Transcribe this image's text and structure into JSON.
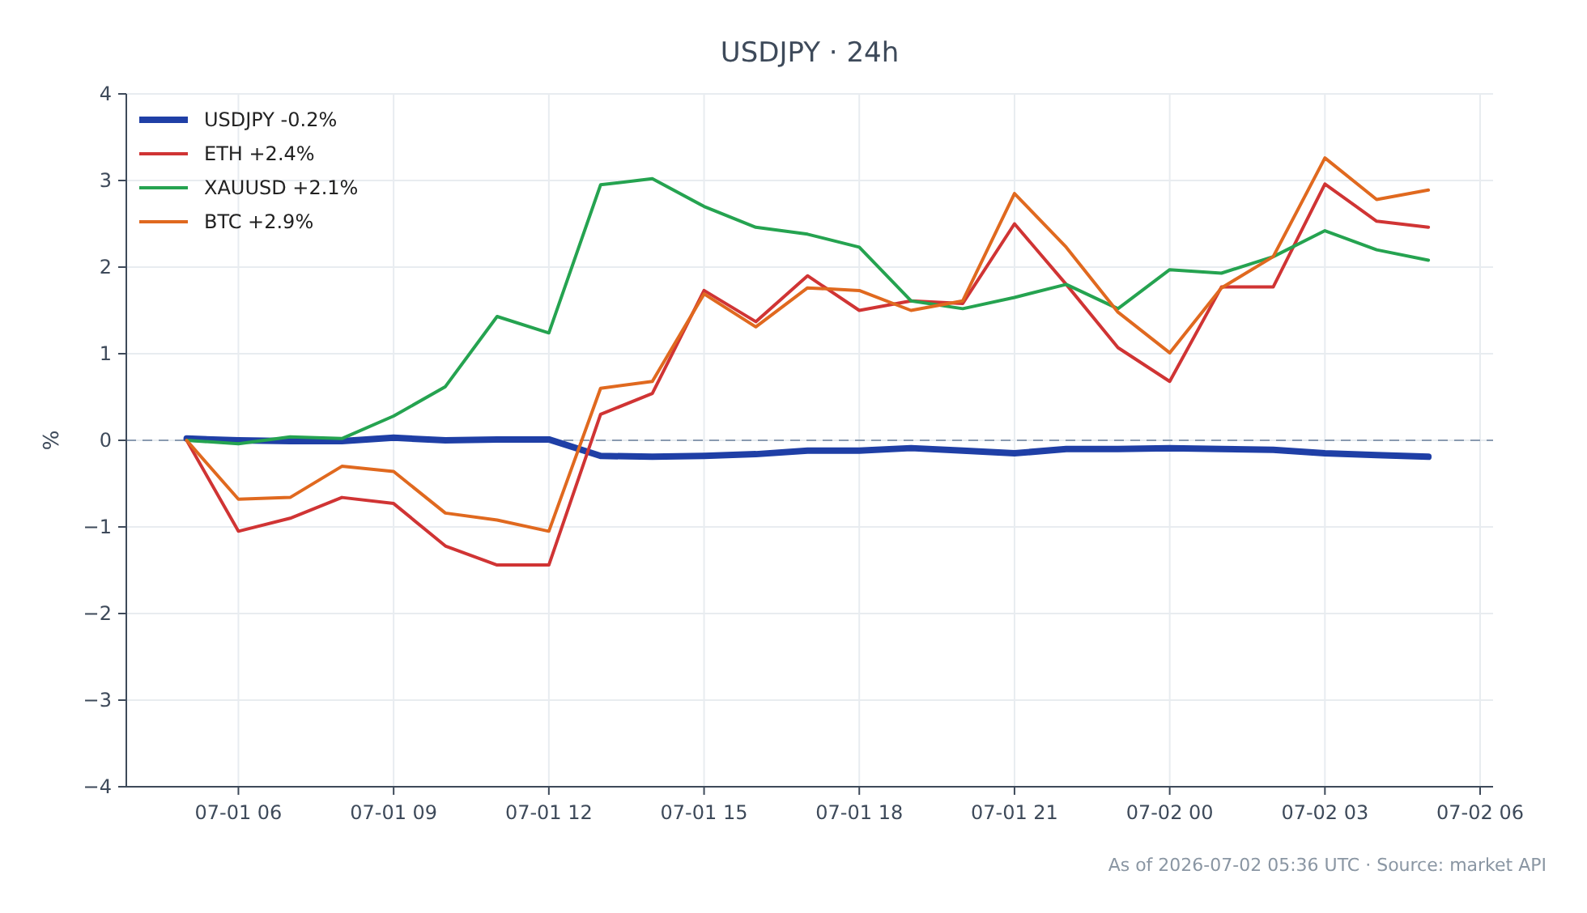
{
  "chart_data": {
    "type": "line",
    "title": "USDJPY · 24h",
    "ylabel": "%",
    "x": [
      "2026-07-01T05:00",
      "2026-07-01T06:00",
      "2026-07-01T07:00",
      "2026-07-01T08:00",
      "2026-07-01T09:00",
      "2026-07-01T10:00",
      "2026-07-01T11:00",
      "2026-07-01T12:00",
      "2026-07-01T13:00",
      "2026-07-01T14:00",
      "2026-07-01T15:00",
      "2026-07-01T16:00",
      "2026-07-01T17:00",
      "2026-07-01T18:00",
      "2026-07-01T19:00",
      "2026-07-01T20:00",
      "2026-07-01T21:00",
      "2026-07-01T22:00",
      "2026-07-01T23:00",
      "2026-07-02T00:00",
      "2026-07-02T01:00",
      "2026-07-02T02:00",
      "2026-07-02T03:00",
      "2026-07-02T04:00",
      "2026-07-02T05:00"
    ],
    "series": [
      {
        "name": "USDJPY -0.2%",
        "color": "#1f3fa6",
        "values": [
          0.02,
          0.0,
          -0.01,
          -0.01,
          0.03,
          0.0,
          0.01,
          0.01,
          -0.18,
          -0.19,
          -0.18,
          -0.16,
          -0.12,
          -0.12,
          -0.09,
          -0.12,
          -0.15,
          -0.1,
          -0.1,
          -0.09,
          -0.1,
          -0.11,
          -0.15,
          -0.17,
          -0.19
        ]
      },
      {
        "name": "ETH +2.4%",
        "color": "#d03434",
        "values": [
          0,
          -1.05,
          -0.9,
          -0.66,
          -0.73,
          -1.22,
          -1.44,
          -1.44,
          0.3,
          0.54,
          1.73,
          1.37,
          1.9,
          1.5,
          1.61,
          1.58,
          2.5,
          1.8,
          1.07,
          0.68,
          1.77,
          1.77,
          2.96,
          2.53,
          2.46
        ]
      },
      {
        "name": "XAUUSD +2.1%",
        "color": "#25a350",
        "values": [
          0,
          -0.04,
          0.04,
          0.02,
          0.28,
          0.62,
          1.43,
          1.24,
          2.95,
          3.02,
          2.7,
          2.46,
          2.38,
          2.23,
          1.61,
          1.52,
          1.65,
          1.8,
          1.52,
          1.97,
          1.93,
          2.12,
          2.42,
          2.2,
          2.08
        ]
      },
      {
        "name": "BTC +2.9%",
        "color": "#e0691f",
        "values": [
          0,
          -0.68,
          -0.66,
          -0.3,
          -0.36,
          -0.84,
          -0.92,
          -1.05,
          0.6,
          0.68,
          1.69,
          1.31,
          1.76,
          1.73,
          1.5,
          1.61,
          2.85,
          2.23,
          1.48,
          1.01,
          1.76,
          2.12,
          3.26,
          2.78,
          2.89
        ]
      }
    ],
    "xlim": [
      "2026-07-01T03:50",
      "2026-07-02T06:15"
    ],
    "xticks": [
      {
        "value": "2026-07-01T06:00",
        "label": "07-01 06"
      },
      {
        "value": "2026-07-01T09:00",
        "label": "07-01 09"
      },
      {
        "value": "2026-07-01T12:00",
        "label": "07-01 12"
      },
      {
        "value": "2026-07-01T15:00",
        "label": "07-01 15"
      },
      {
        "value": "2026-07-01T18:00",
        "label": "07-01 18"
      },
      {
        "value": "2026-07-01T21:00",
        "label": "07-01 21"
      },
      {
        "value": "2026-07-02T00:00",
        "label": "07-02 00"
      },
      {
        "value": "2026-07-02T03:00",
        "label": "07-02 03"
      },
      {
        "value": "2026-07-02T06:00",
        "label": "07-02 06"
      }
    ],
    "ylim": [
      -4,
      4
    ],
    "yticks": [
      {
        "value": -4,
        "label": "−4"
      },
      {
        "value": -3,
        "label": "−3"
      },
      {
        "value": -2,
        "label": "−2"
      },
      {
        "value": -1,
        "label": "−1"
      },
      0,
      1,
      2,
      3,
      4
    ],
    "ref_lines": [
      {
        "axis": "y",
        "value": 0,
        "color": "#8a9bb0",
        "line_style": "dashed"
      }
    ],
    "grid": true,
    "legend": "top left",
    "line_style": "solid",
    "annotations": [
      "As of 2026-07-02 05:36 UTC · Source: market API"
    ]
  }
}
